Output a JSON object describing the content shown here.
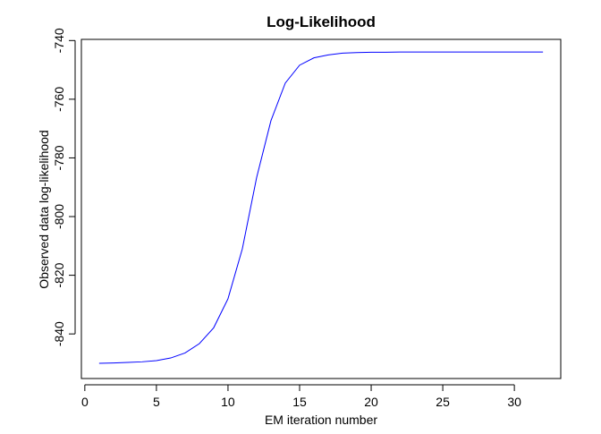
{
  "chart_data": {
    "type": "line",
    "title": "Log-Likelihood",
    "x_label": "EM iteration number",
    "y_label": "Observed data log-likelihood",
    "x": [
      1,
      2,
      3,
      4,
      5,
      6,
      7,
      8,
      9,
      10,
      11,
      12,
      13,
      14,
      15,
      16,
      17,
      18,
      19,
      20,
      21,
      22,
      23,
      24,
      25,
      26,
      27,
      28,
      29,
      30,
      31,
      32
    ],
    "values": [
      -850.0,
      -849.9,
      -849.7,
      -849.5,
      -849.1,
      -848.2,
      -846.5,
      -843.3,
      -837.9,
      -828.0,
      -811.0,
      -786.7,
      -767.3,
      -754.5,
      -748.4,
      -745.9,
      -744.9,
      -744.3,
      -744.1,
      -744.0,
      -744.0,
      -743.9,
      -743.9,
      -743.9,
      -743.9,
      -743.9,
      -743.9,
      -743.9,
      -743.9,
      -743.9,
      -743.9,
      -743.9
    ],
    "color": "#0000ff",
    "xlim": [
      -0.24,
      33.24
    ],
    "xticks": [
      0,
      5,
      10,
      15,
      20,
      25,
      30
    ],
    "ylim": [
      -855.2,
      -739.6
    ],
    "yticks": [
      -840,
      -820,
      -800,
      -780,
      -760,
      -740
    ]
  }
}
